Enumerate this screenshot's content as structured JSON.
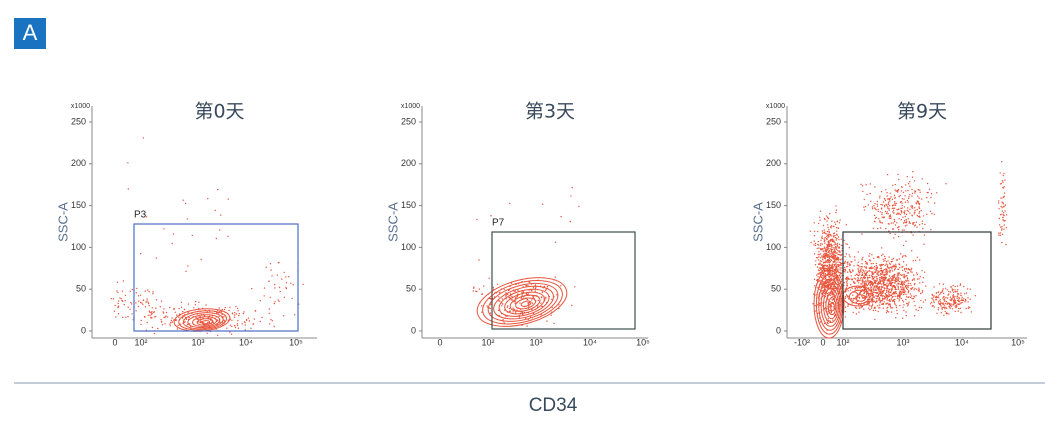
{
  "panel_label": "A",
  "plots": [
    {
      "title": "第0天",
      "y_label": "SSC-A",
      "y_unit": "x1000",
      "yticks": [
        "0",
        "50",
        "100",
        "150",
        "200",
        "250"
      ],
      "xticks": [
        "0",
        "10²",
        "10³",
        "10⁴",
        "10⁵"
      ],
      "gate_label": "P3"
    },
    {
      "title": "第3天",
      "y_label": "SSC-A",
      "y_unit": "x1000",
      "yticks": [
        "0",
        "50",
        "100",
        "150",
        "200",
        "250"
      ],
      "xticks": [
        "0",
        "10²",
        "10³",
        "10⁴",
        "10⁵"
      ],
      "gate_label": "P7"
    },
    {
      "title": "第9天",
      "y_label": "SSC-A",
      "y_unit": "x1000",
      "yticks": [
        "0",
        "50",
        "100",
        "150",
        "200",
        "250"
      ],
      "xticks": [
        "-10²",
        "0",
        "10²",
        "10³",
        "10⁴",
        "10⁵"
      ]
    }
  ],
  "x_label": "CD34"
}
